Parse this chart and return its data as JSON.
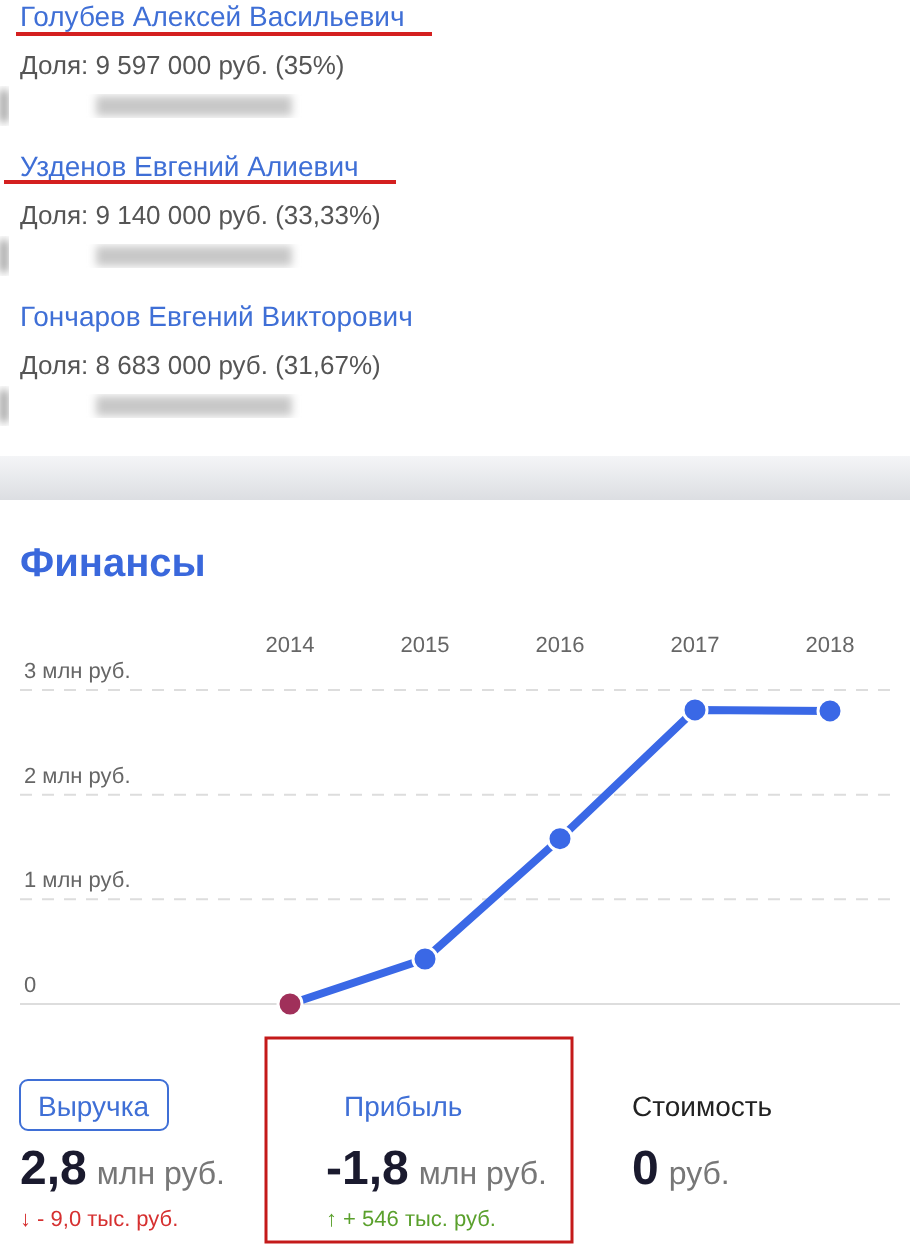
{
  "chart_data": [
    {
      "type": "other",
      "annotations": [
        "Голубев Алексей Васильевич",
        "Доля: 9 597 000 руб. (35%)",
        "Узденов Евгений Алиевич",
        "Доля: 9 140 000 руб. (33,33%)",
        "Гончаров Евгений Викторович",
        "Доля: 8 683 000 руб. (31,67%)"
      ]
    },
    {
      "type": "line",
      "title": "Финансы",
      "categories": [
        "2014",
        "2015",
        "2016",
        "2017",
        "2018"
      ],
      "series": [
        {
          "color": "#3a68e6",
          "colors": [
            "#a0305a",
            "#3a68e6",
            "#3a68e6",
            "#3a68e6",
            "#3a68e6"
          ],
          "values": [
            0,
            0.43,
            1.58,
            2.81,
            2.8
          ]
        }
      ],
      "ylim": [
        0,
        3
      ],
      "yticks": [
        {
          "value": 0,
          "label": "0"
        },
        {
          "value": 1,
          "label": "1 млн руб."
        },
        {
          "value": 2,
          "label": "2 млн руб."
        },
        {
          "value": 3,
          "label": "3 млн руб."
        }
      ],
      "grid": "y",
      "marker": "circle",
      "line_style": "solid"
    },
    {
      "type": "other",
      "annotations": [
        "Выручка",
        "2,8",
        "млн руб.",
        "↓ - 9,0 тыс. руб.",
        "Прибыль",
        "-1,8",
        "млн руб.",
        "↑ + 546 тыс. руб.",
        "Стоимость",
        "0",
        "руб."
      ]
    }
  ]
}
